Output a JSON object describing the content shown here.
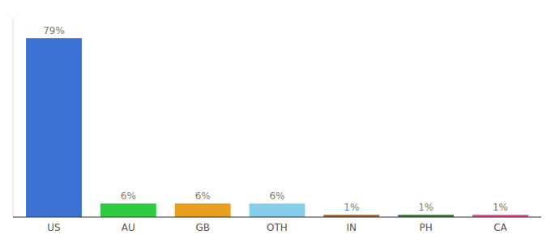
{
  "chart_data": {
    "type": "bar",
    "categories": [
      "US",
      "AU",
      "GB",
      "OTH",
      "IN",
      "PH",
      "CA"
    ],
    "values": [
      79,
      6,
      6,
      6,
      1,
      1,
      1
    ],
    "value_labels": [
      "79%",
      "6%",
      "6%",
      "6%",
      "1%",
      "1%",
      "1%"
    ],
    "colors": [
      "#3d72d4",
      "#2ecc40",
      "#e8a020",
      "#87ceeb",
      "#b06020",
      "#2a7a2a",
      "#e8409a"
    ],
    "ylim": [
      0,
      88
    ],
    "data_labels": true,
    "tick_labels": "x",
    "grid": false
  }
}
